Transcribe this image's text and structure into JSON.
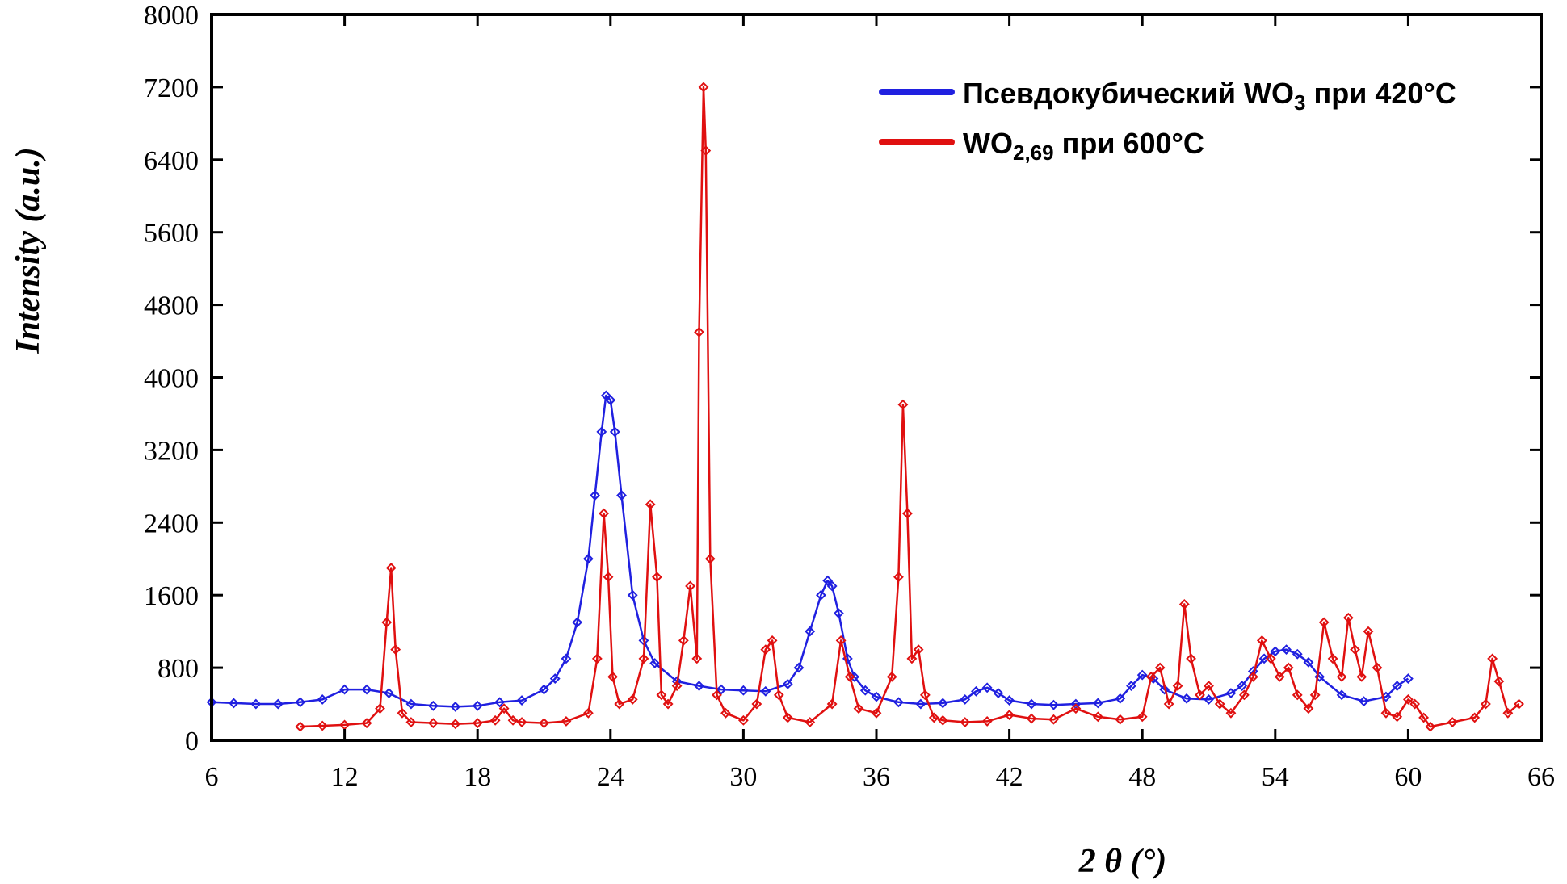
{
  "chart_data": {
    "type": "scatter",
    "xlabel": "2 θ (°)",
    "ylabel": "Intensity (a.u.)",
    "xlim": [
      6,
      66
    ],
    "ylim": [
      0,
      8000
    ],
    "x_ticks": [
      6,
      12,
      18,
      24,
      30,
      36,
      42,
      48,
      54,
      60,
      66
    ],
    "y_ticks": [
      0,
      800,
      1600,
      2400,
      3200,
      4000,
      4800,
      5600,
      6400,
      7200,
      8000
    ],
    "x_tick_labels": [
      "6",
      "12",
      "18",
      "24",
      "30",
      "36",
      "42",
      "48",
      "54",
      "60",
      "66"
    ],
    "y_tick_labels": [
      "0",
      "800",
      "1600",
      "2400",
      "3200",
      "4000",
      "4800",
      "5600",
      "6400",
      "7200",
      "8000"
    ],
    "grid": false,
    "legend_position": "top-right",
    "series": [
      {
        "name": "Псевдокубический WO3 при 420°C",
        "legend": {
          "main": "Псевдокубический WO",
          "sub": "3",
          "tail": " при 420°C"
        },
        "color": "#2020e0",
        "marker": "diamond",
        "x": [
          6.0,
          7.0,
          8.0,
          9.0,
          10.0,
          11.0,
          12.0,
          13.0,
          14.0,
          15.0,
          16.0,
          17.0,
          18.0,
          19.0,
          20.0,
          21.0,
          21.5,
          22.0,
          22.5,
          23.0,
          23.3,
          23.6,
          23.8,
          24.0,
          24.2,
          24.5,
          25.0,
          25.5,
          26.0,
          27.0,
          28.0,
          29.0,
          30.0,
          31.0,
          32.0,
          32.5,
          33.0,
          33.5,
          33.8,
          34.0,
          34.3,
          34.7,
          35.0,
          35.5,
          36.0,
          37.0,
          38.0,
          39.0,
          40.0,
          40.5,
          41.0,
          41.5,
          42.0,
          43.0,
          44.0,
          45.0,
          46.0,
          47.0,
          47.5,
          48.0,
          48.5,
          49.0,
          50.0,
          51.0,
          52.0,
          52.5,
          53.0,
          53.5,
          54.0,
          54.5,
          55.0,
          55.5,
          56.0,
          57.0,
          58.0,
          59.0,
          59.5,
          60.0
        ],
        "y": [
          420,
          410,
          400,
          400,
          420,
          450,
          560,
          560,
          520,
          400,
          380,
          370,
          380,
          420,
          440,
          560,
          680,
          900,
          1300,
          2000,
          2700,
          3400,
          3800,
          3750,
          3400,
          2700,
          1600,
          1100,
          850,
          650,
          600,
          560,
          550,
          540,
          620,
          800,
          1200,
          1600,
          1760,
          1700,
          1400,
          900,
          700,
          550,
          480,
          420,
          400,
          410,
          450,
          540,
          580,
          520,
          440,
          400,
          390,
          400,
          410,
          460,
          600,
          720,
          680,
          560,
          460,
          450,
          520,
          600,
          760,
          900,
          980,
          1000,
          950,
          860,
          700,
          500,
          430,
          480,
          600,
          680
        ]
      },
      {
        "name": "WO2,69 при 600°C",
        "legend": {
          "main": "WO",
          "sub": "2,69",
          "tail": " при 600°C"
        },
        "color": "#e01010",
        "marker": "diamond",
        "x": [
          10.0,
          11.0,
          12.0,
          13.0,
          13.6,
          13.9,
          14.1,
          14.3,
          14.6,
          15.0,
          16.0,
          17.0,
          18.0,
          18.8,
          19.2,
          19.6,
          20.0,
          21.0,
          22.0,
          23.0,
          23.4,
          23.7,
          23.9,
          24.1,
          24.4,
          25.0,
          25.5,
          25.8,
          26.1,
          26.3,
          26.6,
          27.0,
          27.3,
          27.6,
          27.9,
          28.0,
          28.2,
          28.3,
          28.5,
          28.8,
          29.2,
          30.0,
          30.6,
          31.0,
          31.3,
          31.6,
          32.0,
          33.0,
          34.0,
          34.4,
          34.8,
          35.2,
          36.0,
          36.7,
          37.0,
          37.2,
          37.4,
          37.6,
          37.9,
          38.2,
          38.6,
          39.0,
          40.0,
          41.0,
          42.0,
          43.0,
          44.0,
          45.0,
          46.0,
          47.0,
          48.0,
          48.4,
          48.8,
          49.2,
          49.6,
          49.9,
          50.2,
          50.6,
          51.0,
          51.5,
          52.0,
          52.6,
          53.0,
          53.4,
          53.8,
          54.2,
          54.6,
          55.0,
          55.5,
          55.8,
          56.2,
          56.6,
          57.0,
          57.3,
          57.6,
          57.9,
          58.2,
          58.6,
          59.0,
          59.5,
          60.0,
          60.3,
          60.7,
          61.0,
          62.0,
          63.0,
          63.5,
          63.8,
          64.1,
          64.5,
          65.0
        ],
        "y": [
          150,
          160,
          170,
          190,
          350,
          1300,
          1900,
          1000,
          300,
          200,
          190,
          180,
          190,
          220,
          350,
          220,
          200,
          190,
          210,
          300,
          900,
          2500,
          1800,
          700,
          400,
          450,
          900,
          2600,
          1800,
          500,
          400,
          600,
          1100,
          1700,
          900,
          4500,
          7200,
          6500,
          2000,
          500,
          300,
          220,
          400,
          1000,
          1100,
          500,
          250,
          200,
          400,
          1100,
          700,
          350,
          300,
          700,
          1800,
          3700,
          2500,
          900,
          1000,
          500,
          250,
          220,
          200,
          210,
          280,
          240,
          230,
          350,
          260,
          230,
          260,
          700,
          800,
          400,
          600,
          1500,
          900,
          500,
          600,
          400,
          300,
          500,
          700,
          1100,
          900,
          700,
          800,
          500,
          350,
          500,
          1300,
          900,
          700,
          1350,
          1000,
          700,
          1200,
          800,
          300,
          260,
          450,
          400,
          250,
          150,
          200,
          250,
          400,
          900,
          650,
          300,
          400
        ]
      }
    ]
  }
}
